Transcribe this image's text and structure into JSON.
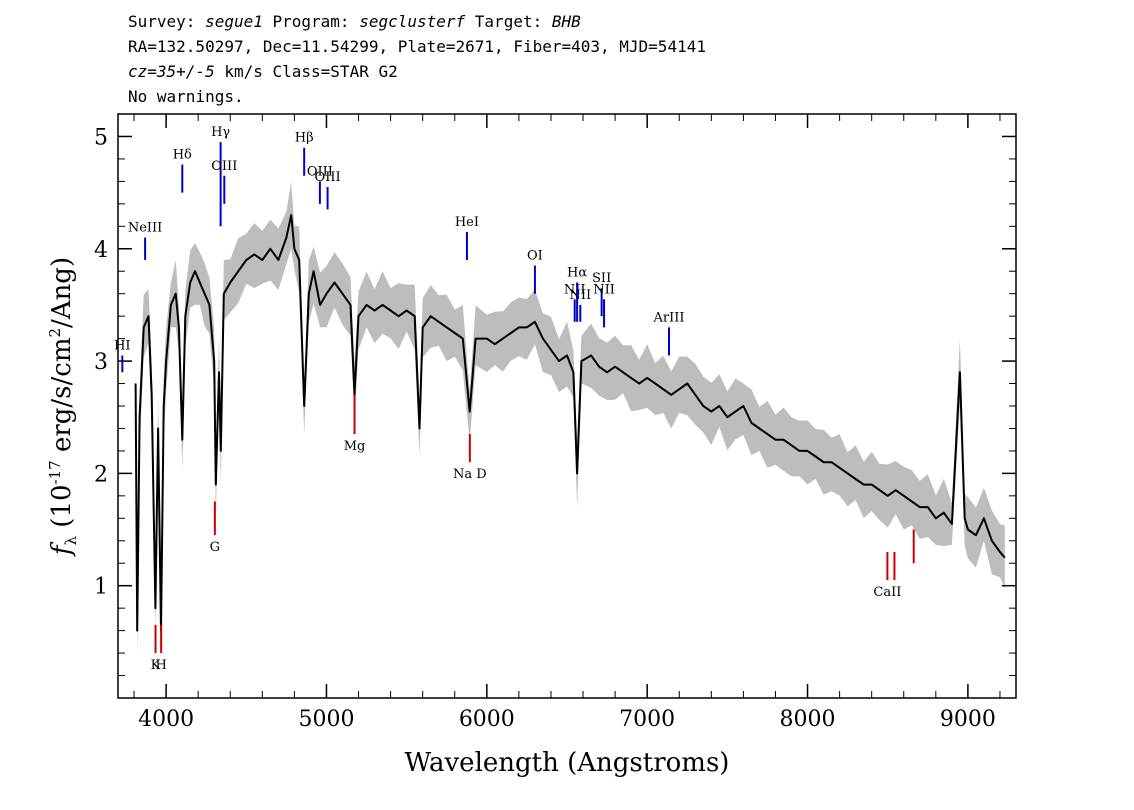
{
  "header": {
    "l1_a": "Survey: ",
    "survey": "segue1",
    "l1_b": " Program: ",
    "program": "segclusterf",
    "l1_c": " Target: ",
    "target": "BHB",
    "line2": "RA=132.50297, Dec=11.54299, Plate=2671, Fiber=403, MJD=54141",
    "cz": "cz=35+/-5",
    "l3_b": " km/s Class=STAR G2",
    "line4": "No warnings."
  },
  "chart_data": {
    "type": "line",
    "xlabel": "Wavelength (Angstroms)",
    "ylabel": "f_λ (10^-17 erg/s/cm^2/Ang)",
    "xlim": [
      3700,
      9300
    ],
    "ylim": [
      0,
      5.2
    ],
    "x_ticks": [
      4000,
      5000,
      6000,
      7000,
      8000,
      9000
    ],
    "y_ticks": [
      1,
      2,
      3,
      4,
      5
    ],
    "colors": {
      "spectrum": "#000000",
      "error_band": "#bdbdbd",
      "emission": "#0000cc",
      "absorption": "#cc0000"
    },
    "spectrum": [
      [
        3810,
        2.8
      ],
      [
        3820,
        0.6
      ],
      [
        3835,
        2.5
      ],
      [
        3860,
        3.3
      ],
      [
        3890,
        3.4
      ],
      [
        3910,
        2.7
      ],
      [
        3933,
        0.8
      ],
      [
        3950,
        2.4
      ],
      [
        3968,
        0.6
      ],
      [
        3985,
        2.6
      ],
      [
        4000,
        3.0
      ],
      [
        4030,
        3.5
      ],
      [
        4060,
        3.6
      ],
      [
        4080,
        3.3
      ],
      [
        4101,
        2.3
      ],
      [
        4120,
        3.4
      ],
      [
        4150,
        3.7
      ],
      [
        4180,
        3.8
      ],
      [
        4210,
        3.7
      ],
      [
        4240,
        3.6
      ],
      [
        4270,
        3.5
      ],
      [
        4300,
        3.0
      ],
      [
        4310,
        1.9
      ],
      [
        4330,
        2.9
      ],
      [
        4341,
        2.2
      ],
      [
        4360,
        3.6
      ],
      [
        4400,
        3.7
      ],
      [
        4450,
        3.8
      ],
      [
        4500,
        3.9
      ],
      [
        4550,
        3.95
      ],
      [
        4600,
        3.9
      ],
      [
        4650,
        4.0
      ],
      [
        4700,
        3.9
      ],
      [
        4750,
        4.1
      ],
      [
        4780,
        4.3
      ],
      [
        4800,
        4.0
      ],
      [
        4830,
        3.9
      ],
      [
        4861,
        2.6
      ],
      [
        4890,
        3.6
      ],
      [
        4920,
        3.8
      ],
      [
        4960,
        3.5
      ],
      [
        5000,
        3.6
      ],
      [
        5050,
        3.7
      ],
      [
        5100,
        3.6
      ],
      [
        5150,
        3.5
      ],
      [
        5175,
        2.7
      ],
      [
        5200,
        3.4
      ],
      [
        5250,
        3.5
      ],
      [
        5300,
        3.45
      ],
      [
        5350,
        3.5
      ],
      [
        5400,
        3.45
      ],
      [
        5450,
        3.4
      ],
      [
        5500,
        3.45
      ],
      [
        5550,
        3.4
      ],
      [
        5580,
        2.4
      ],
      [
        5600,
        3.3
      ],
      [
        5650,
        3.4
      ],
      [
        5700,
        3.35
      ],
      [
        5750,
        3.3
      ],
      [
        5800,
        3.25
      ],
      [
        5850,
        3.2
      ],
      [
        5893,
        2.55
      ],
      [
        5930,
        3.2
      ],
      [
        6000,
        3.2
      ],
      [
        6050,
        3.15
      ],
      [
        6100,
        3.2
      ],
      [
        6150,
        3.25
      ],
      [
        6200,
        3.3
      ],
      [
        6250,
        3.3
      ],
      [
        6300,
        3.35
      ],
      [
        6350,
        3.2
      ],
      [
        6400,
        3.1
      ],
      [
        6450,
        3.0
      ],
      [
        6500,
        3.05
      ],
      [
        6540,
        2.9
      ],
      [
        6563,
        2.0
      ],
      [
        6590,
        3.0
      ],
      [
        6650,
        3.05
      ],
      [
        6700,
        2.95
      ],
      [
        6750,
        2.9
      ],
      [
        6800,
        2.95
      ],
      [
        6850,
        2.9
      ],
      [
        6900,
        2.85
      ],
      [
        6950,
        2.8
      ],
      [
        7000,
        2.85
      ],
      [
        7050,
        2.8
      ],
      [
        7100,
        2.75
      ],
      [
        7150,
        2.7
      ],
      [
        7200,
        2.75
      ],
      [
        7250,
        2.8
      ],
      [
        7300,
        2.7
      ],
      [
        7350,
        2.6
      ],
      [
        7400,
        2.55
      ],
      [
        7450,
        2.6
      ],
      [
        7500,
        2.5
      ],
      [
        7550,
        2.55
      ],
      [
        7600,
        2.6
      ],
      [
        7650,
        2.45
      ],
      [
        7700,
        2.4
      ],
      [
        7750,
        2.35
      ],
      [
        7800,
        2.3
      ],
      [
        7850,
        2.3
      ],
      [
        7900,
        2.25
      ],
      [
        7950,
        2.2
      ],
      [
        8000,
        2.2
      ],
      [
        8050,
        2.15
      ],
      [
        8100,
        2.1
      ],
      [
        8150,
        2.1
      ],
      [
        8200,
        2.05
      ],
      [
        8250,
        2.0
      ],
      [
        8300,
        1.95
      ],
      [
        8350,
        1.9
      ],
      [
        8400,
        1.9
      ],
      [
        8450,
        1.85
      ],
      [
        8500,
        1.8
      ],
      [
        8550,
        1.85
      ],
      [
        8600,
        1.8
      ],
      [
        8650,
        1.75
      ],
      [
        8700,
        1.7
      ],
      [
        8750,
        1.7
      ],
      [
        8800,
        1.6
      ],
      [
        8850,
        1.65
      ],
      [
        8900,
        1.55
      ],
      [
        8950,
        2.9
      ],
      [
        8980,
        1.6
      ],
      [
        9000,
        1.5
      ],
      [
        9050,
        1.45
      ],
      [
        9100,
        1.6
      ],
      [
        9150,
        1.4
      ],
      [
        9200,
        1.3
      ],
      [
        9230,
        1.25
      ]
    ],
    "emission_lines": [
      {
        "label": "HI",
        "wavelength": 3727,
        "y0": 3.05,
        "y1": 2.9
      },
      {
        "label": "NeIII",
        "wavelength": 3869,
        "y0": 4.1,
        "y1": 3.9
      },
      {
        "label": "Hδ",
        "wavelength": 4101,
        "y0": 4.75,
        "y1": 4.5
      },
      {
        "label": "Hγ",
        "wavelength": 4340,
        "y0": 4.95,
        "y1": 4.2
      },
      {
        "label": "OIII",
        "wavelength": 4363,
        "y0": 4.65,
        "y1": 4.4
      },
      {
        "label": "Hβ",
        "wavelength": 4861,
        "y0": 4.9,
        "y1": 4.65
      },
      {
        "label": "OIII",
        "wavelength": 4959,
        "y0": 4.6,
        "y1": 4.4
      },
      {
        "label": "OIII",
        "wavelength": 5007,
        "y0": 4.55,
        "y1": 4.35
      },
      {
        "label": "HeI",
        "wavelength": 5876,
        "y0": 4.15,
        "y1": 3.9
      },
      {
        "label": "OI",
        "wavelength": 6300,
        "y0": 3.85,
        "y1": 3.6
      },
      {
        "label": "NII",
        "wavelength": 6548,
        "y0": 3.55,
        "y1": 3.35
      },
      {
        "label": "Hα",
        "wavelength": 6563,
        "y0": 3.7,
        "y1": 3.35
      },
      {
        "label": "NII",
        "wavelength": 6583,
        "y0": 3.5,
        "y1": 3.35
      },
      {
        "label": "SII",
        "wavelength": 6716,
        "y0": 3.65,
        "y1": 3.4
      },
      {
        "label": "NII",
        "wavelength": 6731,
        "y0": 3.55,
        "y1": 3.3
      },
      {
        "label": "ArIII",
        "wavelength": 7136,
        "y0": 3.3,
        "y1": 3.05
      }
    ],
    "absorption_lines": [
      {
        "label": "K",
        "wavelength": 3934,
        "y0": 0.65,
        "y1": 0.4
      },
      {
        "label": "H",
        "wavelength": 3969,
        "y0": 0.65,
        "y1": 0.4
      },
      {
        "label": "G",
        "wavelength": 4304,
        "y0": 1.75,
        "y1": 1.45
      },
      {
        "label": "Mg",
        "wavelength": 5175,
        "y0": 2.7,
        "y1": 2.35
      },
      {
        "label": "Na D",
        "wavelength": 5894,
        "y0": 2.35,
        "y1": 2.1
      },
      {
        "label": "CaII",
        "wavelength": 8498,
        "y0": 1.3,
        "y1": 1.05
      },
      {
        "label": "",
        "wavelength": 8542,
        "y0": 1.3,
        "y1": 1.05
      },
      {
        "label": "",
        "wavelength": 8662,
        "y0": 1.5,
        "y1": 1.2
      }
    ]
  }
}
